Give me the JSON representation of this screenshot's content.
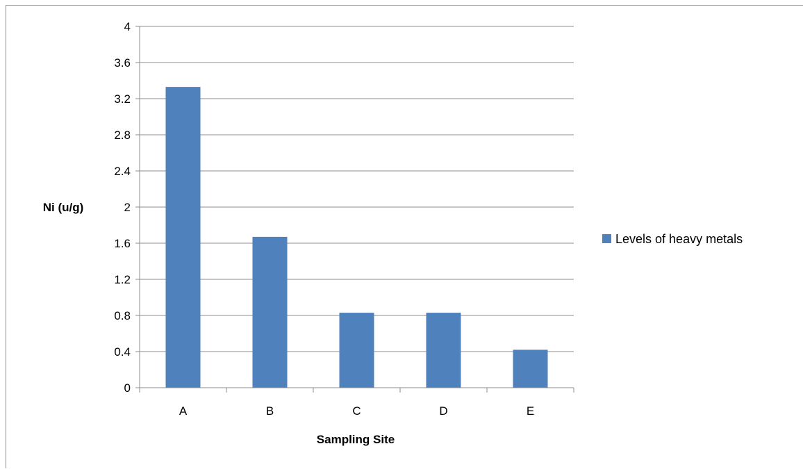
{
  "chart_data": {
    "type": "bar",
    "categories": [
      "A",
      "B",
      "C",
      "D",
      "E"
    ],
    "series": [
      {
        "name": "Levels of heavy metals",
        "values": [
          3.33,
          1.67,
          0.83,
          0.83,
          0.42
        ],
        "color": "#4F81BD"
      }
    ],
    "xlabel": "Sampling Site",
    "ylabel": "Ni (u/g)",
    "ylim": [
      0,
      4
    ],
    "yticks": [
      "0",
      "0.4",
      "0.8",
      "1.2",
      "1.6",
      "2",
      "2.4",
      "2.8",
      "3.2",
      "3.6",
      "4"
    ],
    "grid": true,
    "legend_position": "right"
  }
}
